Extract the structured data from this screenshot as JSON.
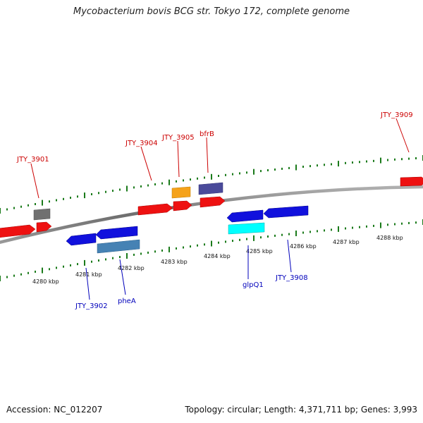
{
  "title": "Mycobacterium bovis BCG str. Tokyo 172, complete genome",
  "footer": {
    "accession": "Accession: NC_012207",
    "summary": "Topology: circular; Length: 4,371,711 bp; Genes: 3,993"
  },
  "colors": {
    "plus_label": "#cc0000",
    "minus_label": "#0000bb",
    "backbone": "#888888",
    "tick": "#1a7a1a"
  },
  "kbp_labels": [
    "4280 kbp",
    "4281 kbp",
    "4282 kbp",
    "4283 kbp",
    "4284 kbp",
    "4285 kbp",
    "4286 kbp",
    "4287 kbp",
    "4288 kbp"
  ],
  "gene_labels": {
    "top": [
      "JTY_3901",
      "JTY_3904",
      "JTY_3905",
      "bfrB",
      "JTY_3909"
    ],
    "bottom": [
      "JTY_3902",
      "pheA",
      "glpQ1",
      "JTY_3908"
    ]
  },
  "legend_colors": [
    "red",
    "blue",
    "grey",
    "orange",
    "slate-blue",
    "steel-blue",
    "cyan"
  ]
}
